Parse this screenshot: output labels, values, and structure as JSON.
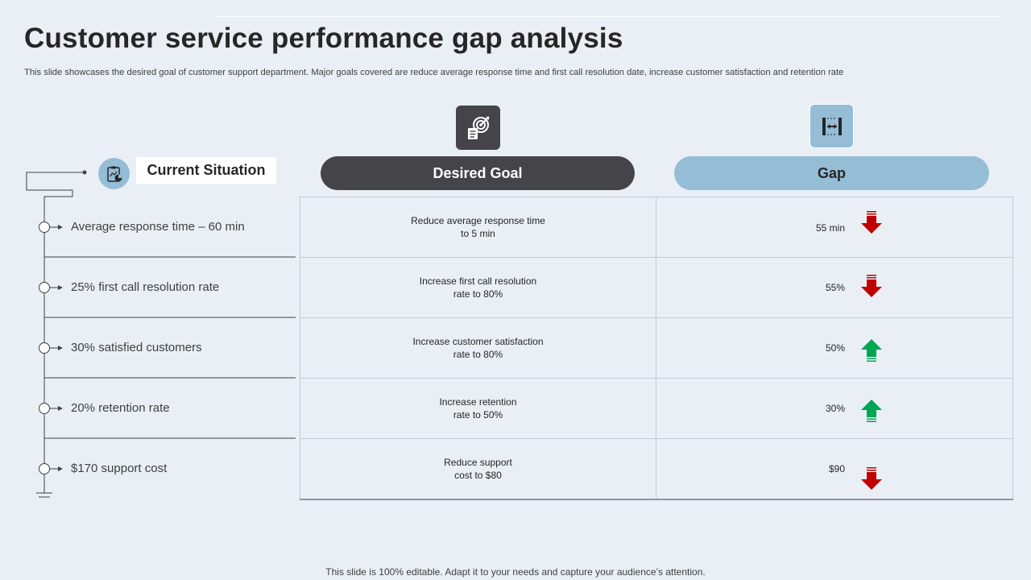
{
  "header": {
    "title": "Customer service performance gap analysis",
    "subtitle": "This slide showcases the desired goal of customer support department. Major goals covered are reduce average response time and first call resolution date, increase customer satisfaction and retention rate"
  },
  "columns": {
    "current": "Current Situation",
    "goal": "Desired Goal",
    "gap": "Gap"
  },
  "rows": [
    {
      "current": "Average response time – 60 min",
      "goal": "Reduce average  response time\nto 5 min",
      "gap": "55 min",
      "direction": "down"
    },
    {
      "current": "25% first call resolution rate",
      "goal": "Increase first call resolution\nrate to 80%",
      "gap": "55%",
      "direction": "down"
    },
    {
      "current": "30% satisfied customers",
      "goal": "Increase customer satisfaction\nrate to 80%",
      "gap": "50%",
      "direction": "up"
    },
    {
      "current": "20% retention rate",
      "goal": "Increase retention\nrate to 50%",
      "gap": "30%",
      "direction": "up"
    },
    {
      "current": "$170 support cost",
      "goal": "Reduce support\ncost to $80",
      "gap": "$90",
      "direction": "down"
    }
  ],
  "colors": {
    "background": "#e9eff5",
    "dark": "#454449",
    "accent_blue": "#95bdd6",
    "arrow_down": "#c00000",
    "arrow_up": "#00a651"
  },
  "icons": {
    "goal": "target-icon",
    "gap": "gap-measure-icon",
    "current": "clipboard-chart-icon"
  },
  "footer": "This slide is 100% editable. Adapt it to your needs and capture your audience’s attention."
}
